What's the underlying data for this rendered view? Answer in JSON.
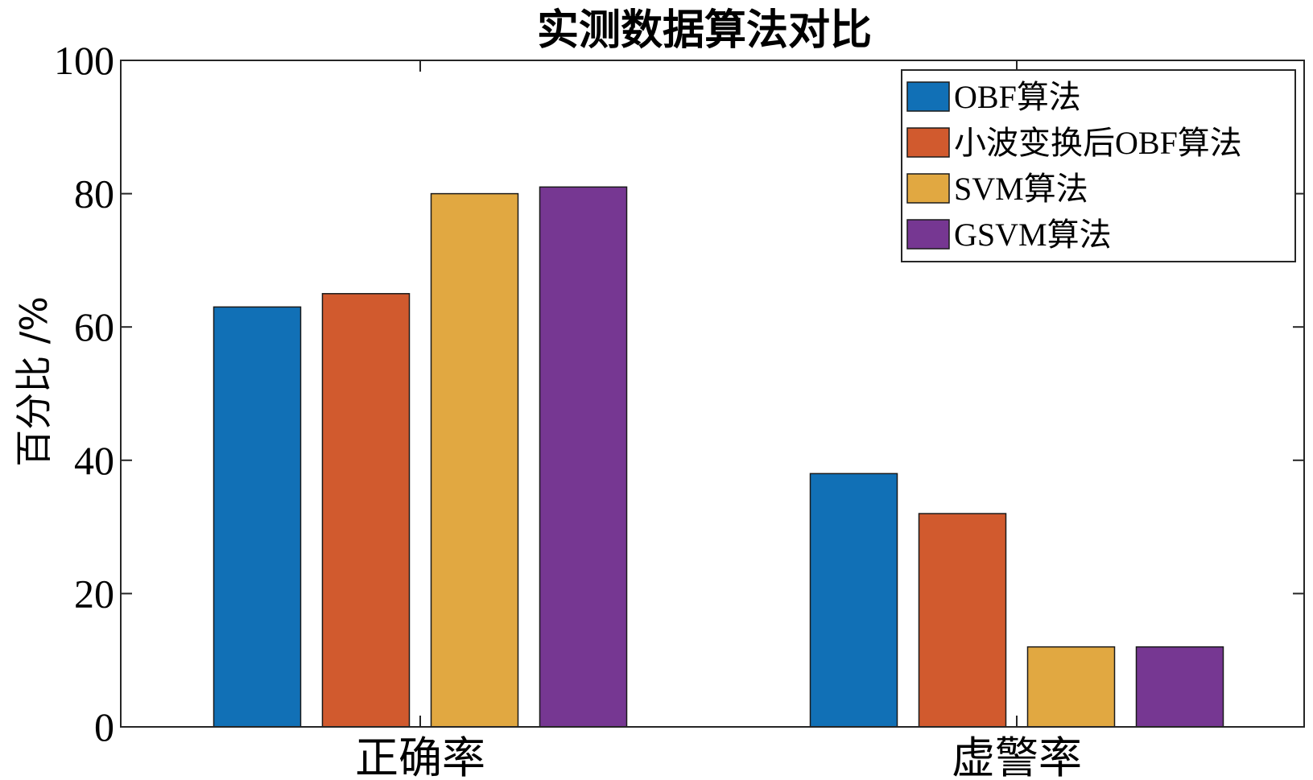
{
  "chart_data": {
    "type": "bar",
    "title": "实测数据算法对比",
    "ylabel": "百分比 /%",
    "xlabel": "",
    "categories": [
      "正确率",
      "虚警率"
    ],
    "series": [
      {
        "name": "OBF算法",
        "values": [
          63,
          38
        ],
        "color": "#1170b6"
      },
      {
        "name": "小波变换后OBF算法",
        "values": [
          65,
          32
        ],
        "color": "#d15a2e"
      },
      {
        "name": "SVM算法",
        "values": [
          80,
          12
        ],
        "color": "#e1a841"
      },
      {
        "name": "GSVM算法",
        "values": [
          81,
          12
        ],
        "color": "#763792"
      }
    ],
    "ylim": [
      0,
      100
    ],
    "yticks": [
      "0",
      "20",
      "40",
      "60",
      "80",
      "100"
    ],
    "legend_position": "top-right",
    "grid": false
  }
}
